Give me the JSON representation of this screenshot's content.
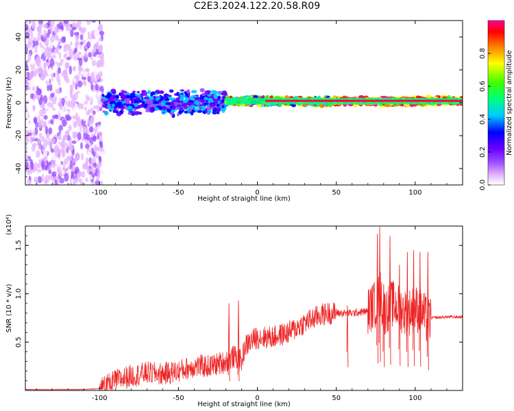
{
  "title": "C2E3.2024.122.20.58.R09",
  "chart_data": [
    {
      "type": "heatmap",
      "name": "spectrogram",
      "xlabel": "Height of straight line (km)",
      "ylabel": "Frequency (Hz)",
      "xlim": [
        -147,
        130
      ],
      "ylim": [
        -50,
        50
      ],
      "xticks": [
        -100,
        -50,
        0,
        50,
        100
      ],
      "yticks": [
        -40,
        -20,
        0,
        20,
        40
      ],
      "colorbar": {
        "label": "Normalized spectral amplitude",
        "range": [
          0.0,
          1.0
        ],
        "ticks": [
          0.0,
          0.2,
          0.4,
          0.6,
          0.8
        ],
        "colormap": [
          "#ffffff",
          "#e6b5ff",
          "#9a4dff",
          "#6a00ff",
          "#0000ff",
          "#00c8ff",
          "#00ff80",
          "#3cff00",
          "#ffff00",
          "#ff8000",
          "#ff0000",
          "#ff0090"
        ]
      },
      "regions": [
        {
          "x": [
            -147,
            -98
          ],
          "freq_band": [
            -50,
            50
          ],
          "amplitude": [
            0.05,
            0.2
          ],
          "description": "scattered noise"
        },
        {
          "x": [
            -98,
            -20
          ],
          "freq_band": [
            -8,
            8
          ],
          "amplitude": [
            0.2,
            0.5
          ]
        },
        {
          "x": [
            -20,
            45
          ],
          "freq_band": [
            -2,
            4
          ],
          "amplitude": [
            0.4,
            0.9
          ]
        },
        {
          "x": [
            45,
            130
          ],
          "freq_band": [
            -2,
            4
          ],
          "amplitude": [
            0.6,
            1.0
          ]
        }
      ]
    },
    {
      "type": "line",
      "name": "snr",
      "xlabel": "Height of straight line (km)",
      "ylabel": "SNR (10 * v/v)",
      "y_multiplier": "(x10⁴)",
      "xlim": [
        -147,
        130
      ],
      "ylim": [
        0,
        1.7
      ],
      "xticks": [
        -100,
        -50,
        0,
        50,
        100
      ],
      "yticks": [
        0.5,
        1.0,
        1.5
      ],
      "color": "#ee2222",
      "series": [
        {
          "x": [
            -147,
            -110,
            -100,
            -95,
            -90,
            -80,
            -70,
            -60,
            -50,
            -40,
            -30,
            -20,
            -15,
            -10,
            -8,
            -5,
            0,
            10,
            20,
            30,
            40,
            45,
            50,
            60,
            70,
            75,
            78,
            80,
            85,
            90,
            95,
            100,
            105,
            108,
            110,
            120,
            130
          ],
          "y": [
            0.01,
            0.01,
            0.02,
            0.05,
            0.1,
            0.15,
            0.18,
            0.17,
            0.2,
            0.25,
            0.25,
            0.3,
            0.35,
            0.3,
            0.45,
            0.5,
            0.55,
            0.55,
            0.6,
            0.7,
            0.78,
            0.8,
            0.8,
            0.8,
            0.82,
            0.9,
            1.0,
            0.8,
            0.9,
            0.85,
            0.8,
            0.85,
            0.8,
            0.7,
            0.75,
            0.76,
            0.76
          ],
          "spikes": [
            {
              "x": -12,
              "y": 0.93
            },
            {
              "x": -18,
              "y": 0.9
            },
            {
              "x": 57,
              "y": 0.88
            },
            {
              "x": 76,
              "y": 1.62
            },
            {
              "x": 77.5,
              "y": 1.69
            },
            {
              "x": 80,
              "y": 1.1
            },
            {
              "x": 84,
              "y": 1.6
            },
            {
              "x": 90,
              "y": 1.3
            },
            {
              "x": 95,
              "y": 1.43
            },
            {
              "x": 99,
              "y": 1.45
            },
            {
              "x": 103,
              "y": 1.43
            },
            {
              "x": 108,
              "y": 1.43
            }
          ]
        }
      ]
    }
  ]
}
